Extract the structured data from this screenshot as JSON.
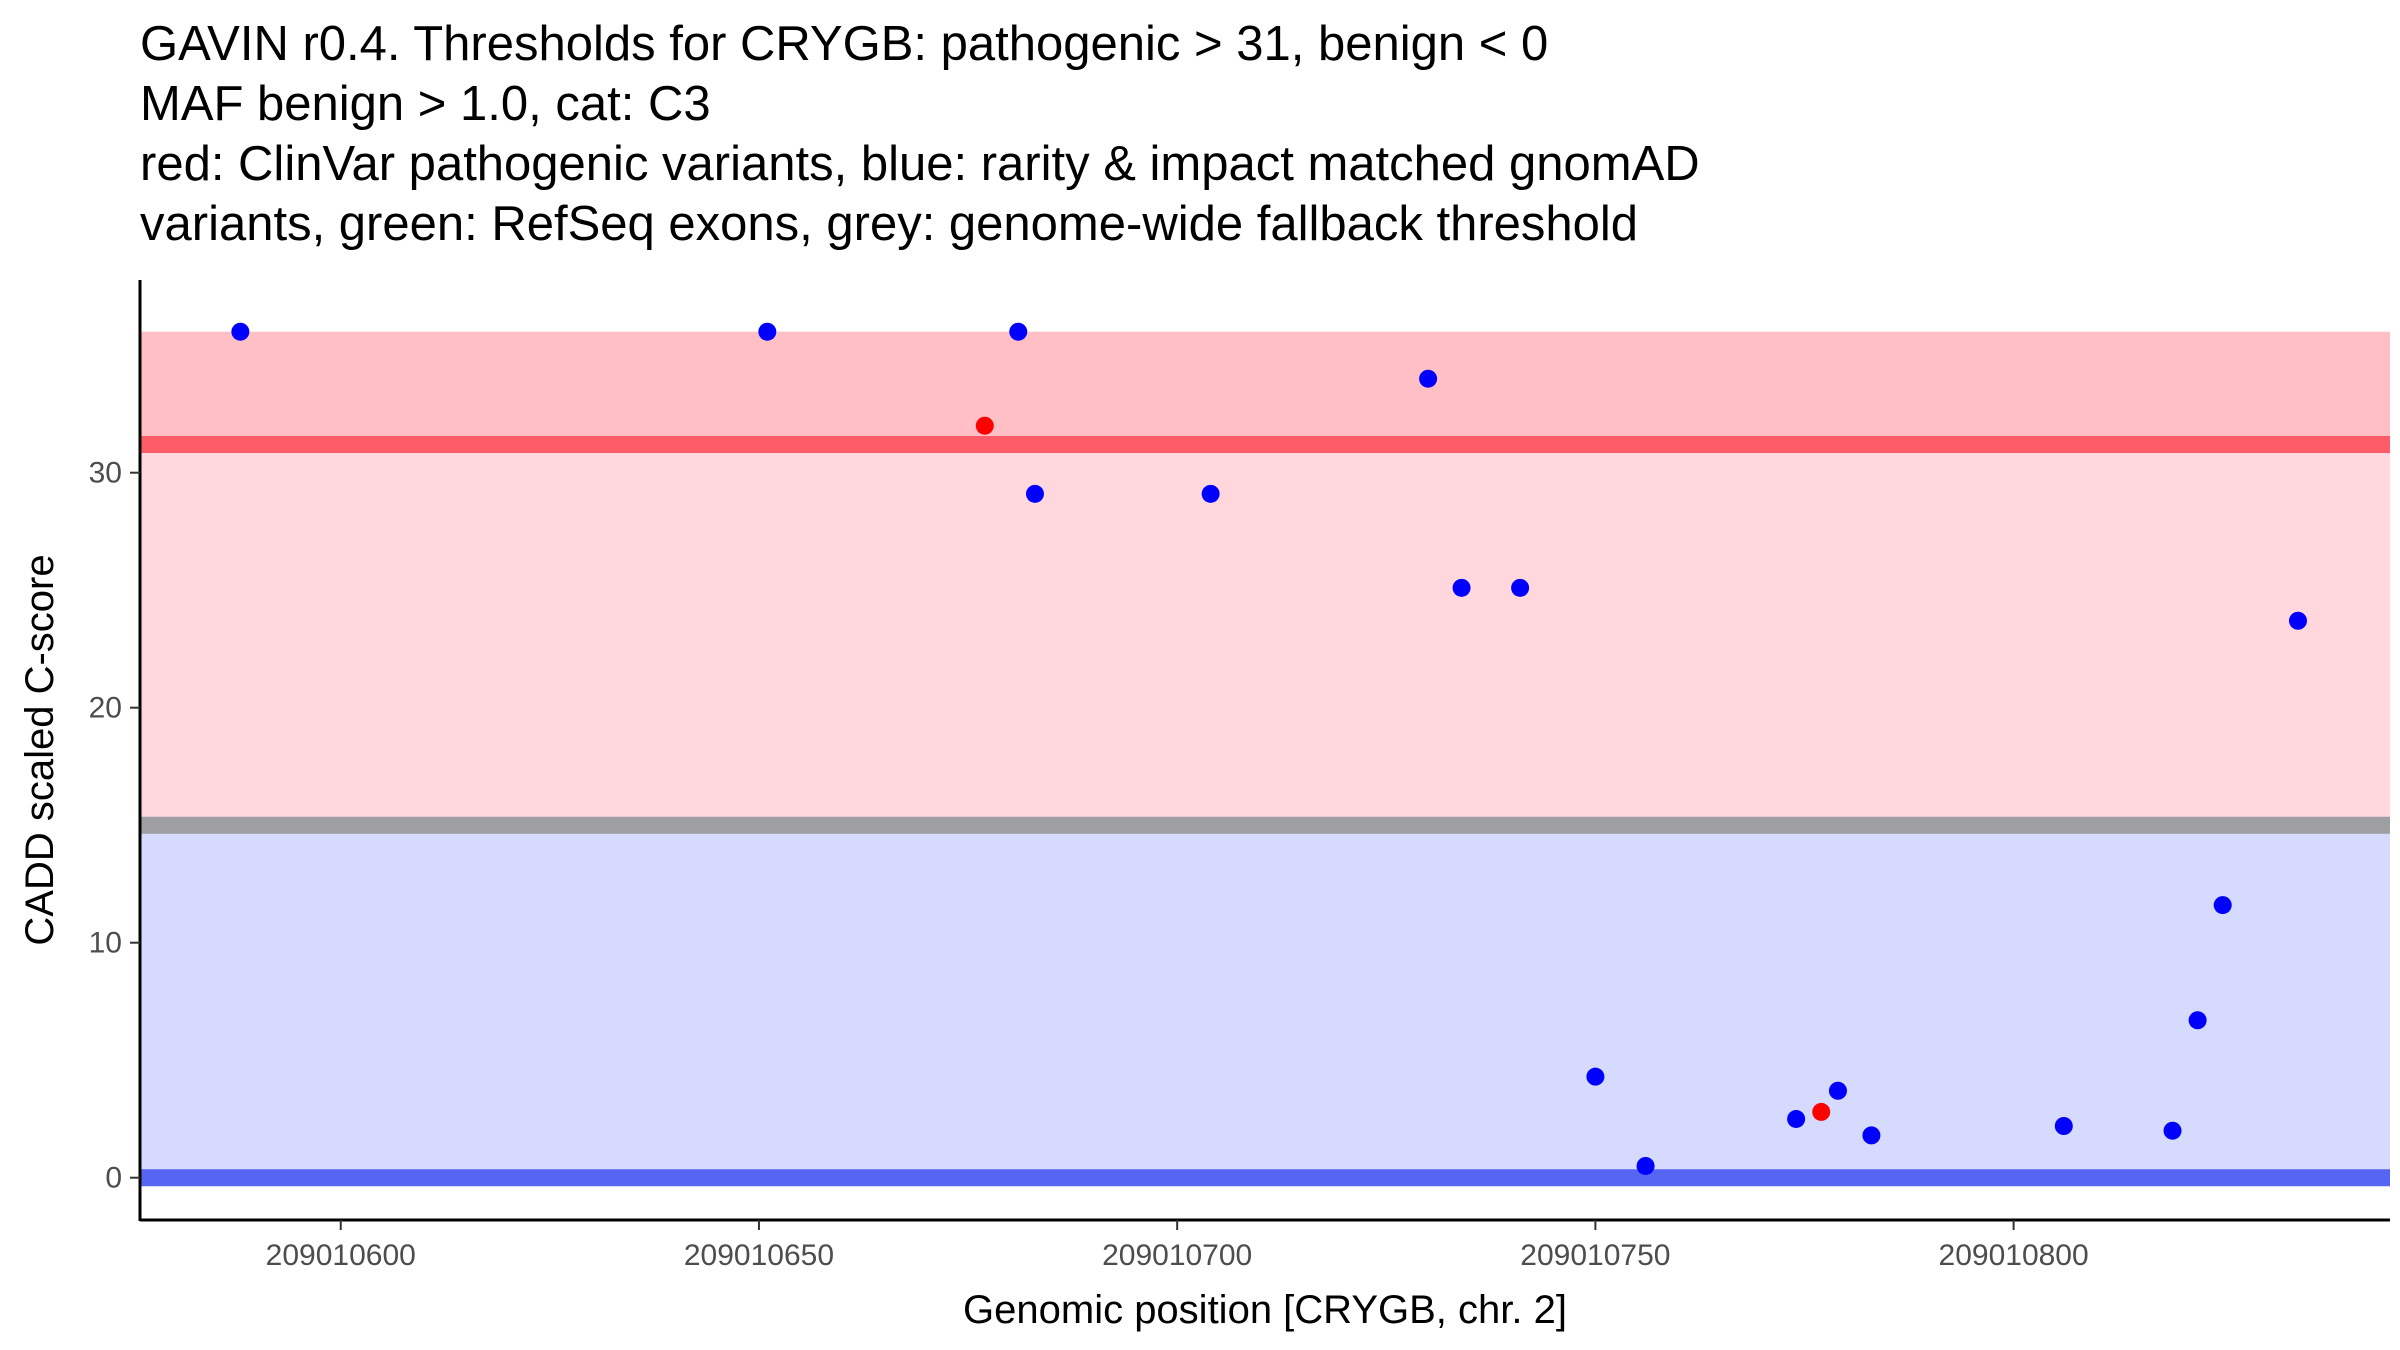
{
  "chart_data": {
    "type": "scatter",
    "title_lines": [
      "GAVIN r0.4. Thresholds for CRYGB: pathogenic > 31, benign < 0",
      "MAF benign > 1.0, cat: C3",
      "red: ClinVar pathogenic variants, blue: rarity & impact matched gnomAD",
      "variants, green: RefSeq exons, grey: genome-wide fallback threshold"
    ],
    "xlabel": "Genomic position [CRYGB, chr. 2]",
    "ylabel": "CADD scaled C-score",
    "xlim": [
      209010576,
      209010845
    ],
    "ylim": [
      -1.8,
      38.2
    ],
    "x_ticks": [
      209010600,
      209010650,
      209010700,
      209010750,
      209010800
    ],
    "x_tick_labels": [
      "209010600",
      "209010650",
      "209010700",
      "209010750",
      "209010800"
    ],
    "y_ticks": [
      0,
      10,
      20,
      30
    ],
    "y_tick_labels": [
      "0",
      "10",
      "20",
      "30"
    ],
    "bands": [
      {
        "name": "pathogenic-band-upper",
        "ymin": 31.2,
        "ymax": 36,
        "color": "#ffbfc4"
      },
      {
        "name": "pathogenic-band-lower",
        "ymin": 15,
        "ymax": 31.2,
        "color": "#ffd7dc"
      },
      {
        "name": "benign-band",
        "ymin": 0,
        "ymax": 15,
        "color": "#d6daff"
      }
    ],
    "threshold_lines": [
      {
        "name": "pathogenic-threshold-line",
        "y": 31.2,
        "color": "#ff5c6a"
      },
      {
        "name": "fallback-threshold-line",
        "y": 15,
        "color": "#9e9ea3"
      },
      {
        "name": "benign-threshold-line",
        "y": 0,
        "color": "#5666f2"
      }
    ],
    "series": [
      {
        "name": "ClinVar pathogenic",
        "color": "#ff0000",
        "x": [
          209010677,
          209010777
        ],
        "y": [
          32,
          2.8
        ]
      },
      {
        "name": "gnomAD matched",
        "color": "#0000ff",
        "x": [
          209010588,
          209010651,
          209010681,
          209010683,
          209010704,
          209010730,
          209010734,
          209010741,
          209010750,
          209010756,
          209010774,
          209010779,
          209010783,
          209010806,
          209010819,
          209010822,
          209010825,
          209010834
        ],
        "y": [
          36,
          36,
          36,
          29.1,
          29.1,
          34,
          25.1,
          25.1,
          4.3,
          0.5,
          2.5,
          3.7,
          1.8,
          2.2,
          2.0,
          6.7,
          11.6,
          23.7
        ]
      }
    ]
  }
}
